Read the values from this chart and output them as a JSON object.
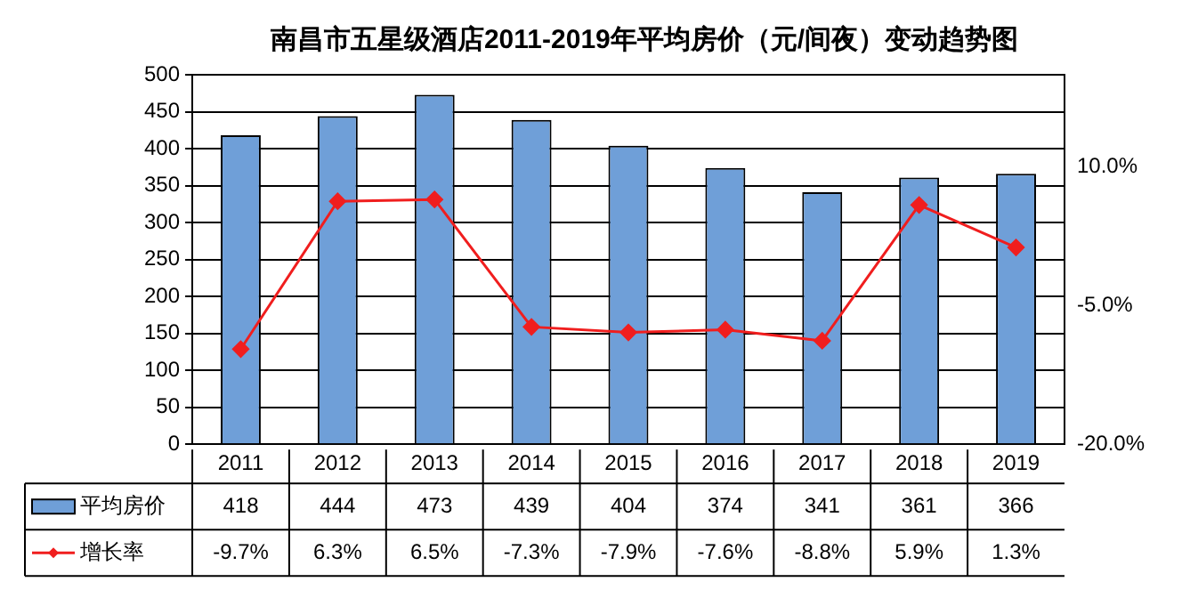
{
  "chart_data": {
    "type": "bar",
    "title": "南昌市五星级酒店2011-2019年平均房价（元/间夜）变动趋势图",
    "categories": [
      "2011",
      "2012",
      "2013",
      "2014",
      "2015",
      "2016",
      "2017",
      "2018",
      "2019"
    ],
    "series": [
      {
        "name": "平均房价",
        "color": "#6f9fd8",
        "values": [
          418,
          444,
          473,
          439,
          404,
          374,
          341,
          361,
          366
        ],
        "value_labels": [
          "418",
          "444",
          "473",
          "439",
          "404",
          "374",
          "341",
          "361",
          "366"
        ]
      },
      {
        "name": "增长率",
        "type": "line",
        "axis": "y2",
        "color": "#f01e1e",
        "marker": "diamond",
        "values": [
          -9.7,
          6.3,
          6.5,
          -7.3,
          -7.9,
          -7.6,
          -8.8,
          5.9,
          1.3
        ],
        "value_labels": [
          "-9.7%",
          "6.3%",
          "6.5%",
          "-7.3%",
          "-7.9%",
          "-7.6%",
          "-8.8%",
          "5.9%",
          "1.3%"
        ]
      }
    ],
    "ylim": [
      0,
      500
    ],
    "yticks": [
      0,
      50,
      100,
      150,
      200,
      250,
      300,
      350,
      400,
      450,
      500
    ],
    "y2lim": [
      -20,
      20
    ],
    "y2ticks": [
      {
        "value": -20,
        "label": "-20.0%"
      },
      {
        "value": -5,
        "label": "-5.0%"
      },
      {
        "value": 10,
        "label": "10.0%"
      }
    ],
    "grid": "y",
    "legend": "bottom"
  }
}
